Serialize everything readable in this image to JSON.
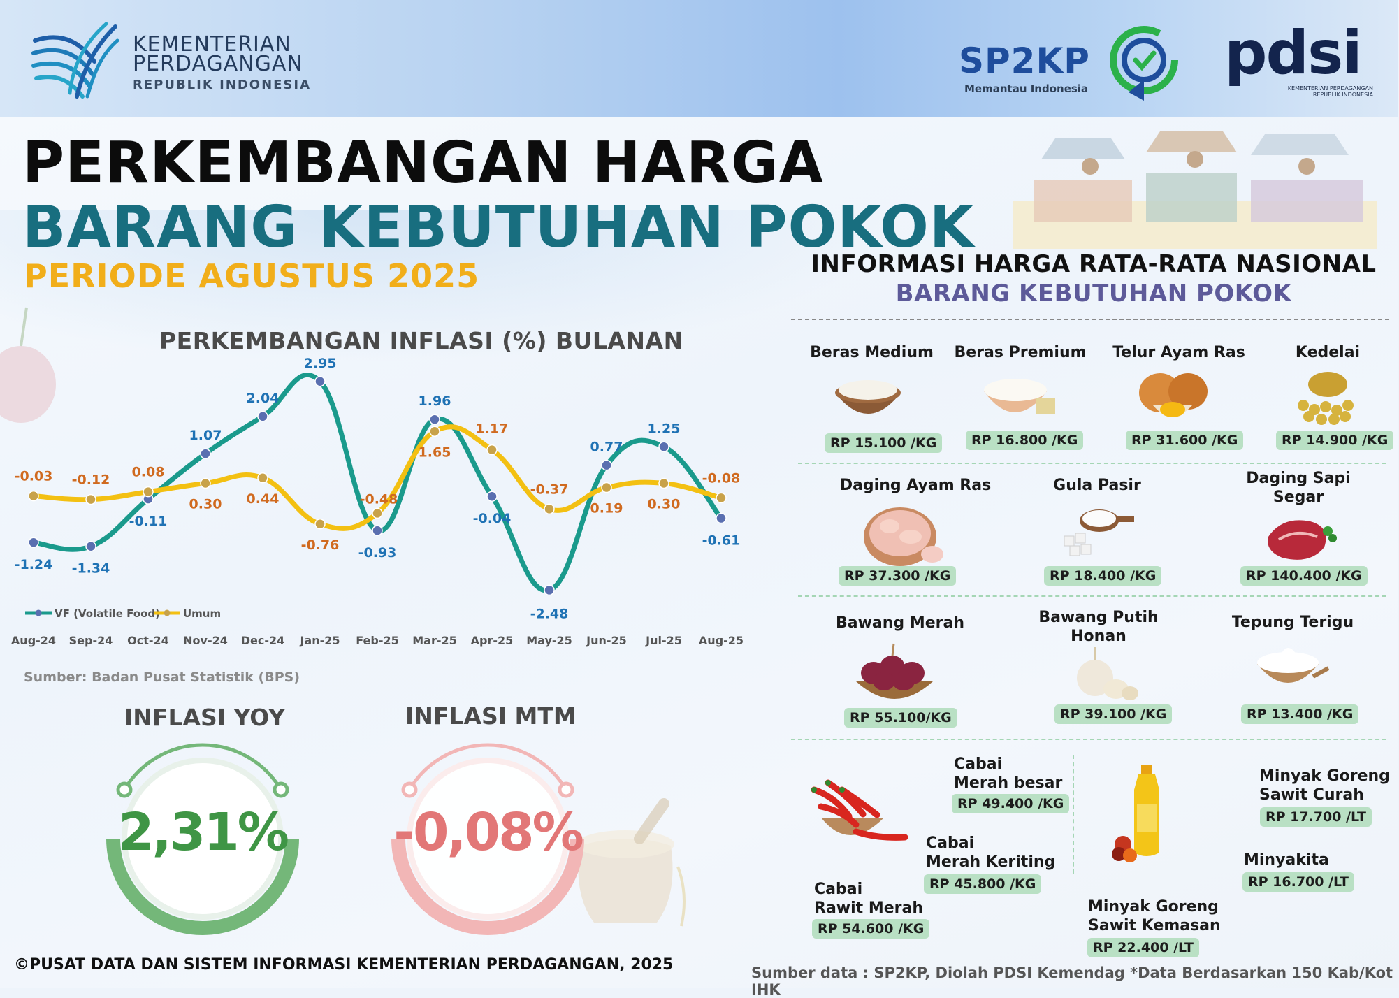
{
  "header": {
    "ministry_line1": "KEMENTERIAN",
    "ministry_line2": "PERDAGANGAN",
    "ministry_line3": "REPUBLIK INDONESIA",
    "sp2kp_name": "SP2KP",
    "sp2kp_tagline": "Memantau Indonesia",
    "pdsi_name": "pdsi",
    "pdsi_tagline1": "KEMENTERIAN PERDAGANGAN",
    "pdsi_tagline2": "REPUBLIK INDONESIA"
  },
  "titles": {
    "line1": "PERKEMBANGAN HARGA",
    "line2": "BARANG KEBUTUHAN POKOK",
    "period": "PERIODE AGUSTUS 2025"
  },
  "colors": {
    "vf_line": "#1a9a8c",
    "vf_marker": "#5a6fb0",
    "vf_label": "#1f72b4",
    "umum_line": "#f3c012",
    "umum_marker": "#c8a24a",
    "umum_label": "#d06a1f",
    "yoy_accent": "#3f9545",
    "mtm_accent": "#e27777",
    "price_badge": "#b9e0c4",
    "teal_title": "#186e7f",
    "gold_title": "#f1ae1a",
    "purple_subtitle": "#5d5a99"
  },
  "chart_data": {
    "type": "line",
    "title": "PERKEMBANGAN INFLASI (%) BULANAN",
    "categories": [
      "Aug-24",
      "Sep-24",
      "Oct-24",
      "Nov-24",
      "Dec-24",
      "Jan-25",
      "Feb-25",
      "Mar-25",
      "Apr-25",
      "May-25",
      "Jun-25",
      "Jul-25",
      "Aug-25"
    ],
    "series": [
      {
        "name": "VF (Volatile Food)",
        "values": [
          -1.24,
          -1.34,
          -0.11,
          1.07,
          2.04,
          2.95,
          -0.93,
          1.96,
          -0.04,
          -2.48,
          0.77,
          1.25,
          -0.61
        ]
      },
      {
        "name": "Umum",
        "values": [
          -0.03,
          -0.12,
          0.08,
          0.3,
          0.44,
          -0.76,
          -0.48,
          1.65,
          1.17,
          -0.37,
          0.19,
          0.3,
          -0.08
        ]
      }
    ],
    "legend_position": "bottom-left",
    "grid": false
  },
  "source_bps": "Sumber: Badan Pusat Statistik (BPS)",
  "inflation": {
    "yoy_label": "INFLASI YOY",
    "yoy_value": "2,31%",
    "mtm_label": "INFLASI MTM",
    "mtm_value": "-0,08%"
  },
  "footer": {
    "copyright": "©PUSAT DATA DAN SISTEM INFORMASI KEMENTERIAN PERDAGANGAN, 2025",
    "source": "Sumber data : SP2KP, Diolah PDSI Kemendag  *Data Berdasarkan 150 Kab/Kot IHK"
  },
  "prices": {
    "heading1": "INFORMASI HARGA RATA-RATA NASIONAL",
    "heading2": "BARANG KEBUTUHAN POKOK",
    "items": [
      {
        "name": "Beras Medium",
        "price": "RP 15.100 /KG",
        "icon": "rice-bowl-icon"
      },
      {
        "name": "Beras Premium",
        "price": "RP 16.800 /KG",
        "icon": "premium-rice-icon"
      },
      {
        "name": "Telur Ayam Ras",
        "price": "RP 31.600 /KG",
        "icon": "egg-icon"
      },
      {
        "name": "Kedelai",
        "price": "RP 14.900 /KG",
        "icon": "soybean-icon"
      },
      {
        "name": "Daging Ayam Ras",
        "price": "RP 37.300 /KG",
        "icon": "chicken-meat-icon"
      },
      {
        "name": "Gula Pasir",
        "price": "RP 18.400 /KG",
        "icon": "sugar-icon"
      },
      {
        "name": "Daging Sapi",
        "name2": "Segar",
        "price": "RP 140.400 /KG",
        "icon": "beef-icon"
      },
      {
        "name": "Bawang Merah",
        "price": "RP 55.100/KG",
        "icon": "shallot-icon"
      },
      {
        "name": "Bawang Putih",
        "name2": "Honan",
        "price": "RP 39.100 /KG",
        "icon": "garlic-icon"
      },
      {
        "name": "Tepung Terigu",
        "price": "RP 13.400 /KG",
        "icon": "flour-icon"
      },
      {
        "name": "Cabai",
        "name2": "Merah besar",
        "price": "RP 49.400 /KG",
        "icon": "chili-icon"
      },
      {
        "name": "Cabai",
        "name2": "Merah Keriting",
        "price": "RP 45.800 /KG",
        "icon": "chili-icon"
      },
      {
        "name": "Cabai",
        "name2": "Rawit Merah",
        "price": "RP 54.600 /KG",
        "icon": "chili-icon"
      },
      {
        "name": "Minyak Goreng",
        "name2": "Sawit Curah",
        "price": "RP 17.700 /LT",
        "icon": "cooking-oil-icon"
      },
      {
        "name": "Minyakita",
        "price": "RP 16.700 /LT",
        "icon": "cooking-oil-icon"
      },
      {
        "name": "Minyak Goreng",
        "name2": "Sawit Kemasan",
        "price": "RP 22.400 /LT",
        "icon": "cooking-oil-icon"
      }
    ]
  }
}
